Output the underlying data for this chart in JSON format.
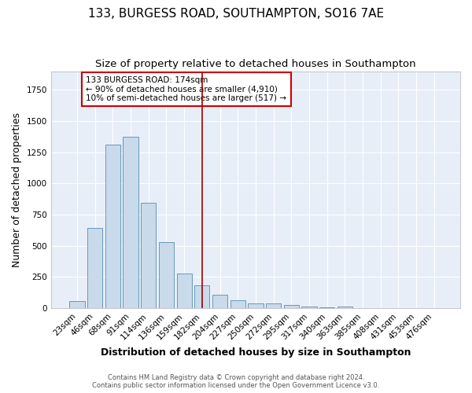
{
  "title": "133, BURGESS ROAD, SOUTHAMPTON, SO16 7AE",
  "subtitle": "Size of property relative to detached houses in Southampton",
  "xlabel": "Distribution of detached houses by size in Southampton",
  "ylabel": "Number of detached properties",
  "footer_line1": "Contains HM Land Registry data © Crown copyright and database right 2024.",
  "footer_line2": "Contains public sector information licensed under the Open Government Licence v3.0.",
  "categories": [
    "23sqm",
    "46sqm",
    "68sqm",
    "91sqm",
    "114sqm",
    "136sqm",
    "159sqm",
    "182sqm",
    "204sqm",
    "227sqm",
    "250sqm",
    "272sqm",
    "295sqm",
    "317sqm",
    "340sqm",
    "363sqm",
    "385sqm",
    "408sqm",
    "431sqm",
    "453sqm",
    "476sqm"
  ],
  "values": [
    55,
    645,
    1310,
    1375,
    845,
    530,
    275,
    185,
    105,
    65,
    38,
    35,
    25,
    12,
    5,
    12,
    0,
    0,
    0,
    0,
    0
  ],
  "bar_color": "#c9daea",
  "bar_edge_color": "#6699bb",
  "background_color": "#e8eef8",
  "grid_color": "#ffffff",
  "vline_x_index": 7,
  "vline_color": "#990000",
  "annotation_text": "133 BURGESS ROAD: 174sqm\n← 90% of detached houses are smaller (4,910)\n10% of semi-detached houses are larger (517) →",
  "annotation_box_color": "#ffffff",
  "annotation_box_edge": "#cc0000",
  "ylim": [
    0,
    1900
  ],
  "title_fontsize": 11,
  "subtitle_fontsize": 9.5,
  "xlabel_fontsize": 9,
  "ylabel_fontsize": 9,
  "tick_fontsize": 7.5,
  "annotation_fontsize": 7.5,
  "footer_fontsize": 6
}
